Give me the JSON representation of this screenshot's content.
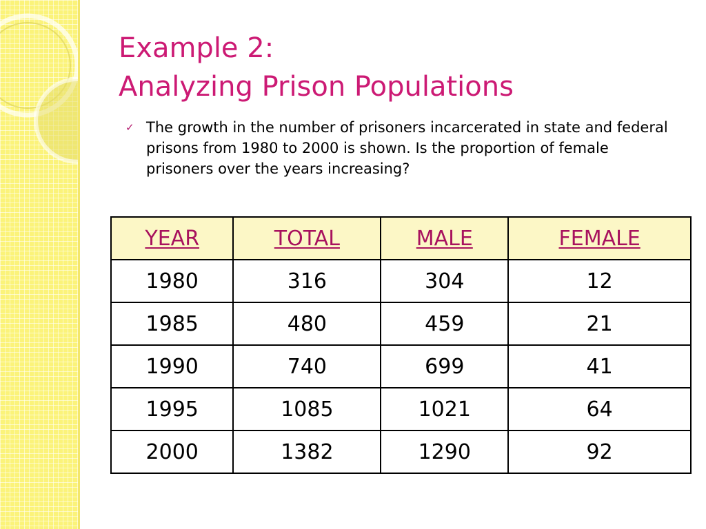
{
  "slide": {
    "title_line1": "Example 2:",
    "title_line2": "Analyzing Prison Populations",
    "bullet_icon": "checkmark",
    "bullet_text": "The growth in the number of prisoners incarcerated in state and federal prisons from 1980 to 2000 is shown.  Is the proportion of female prisoners over the years increasing?"
  },
  "table": {
    "headers": [
      "YEAR",
      "TOTAL",
      "MALE",
      "FEMALE"
    ],
    "rows": [
      [
        "1980",
        "316",
        "304",
        "12"
      ],
      [
        "1985",
        "480",
        "459",
        "21"
      ],
      [
        "1990",
        "740",
        "699",
        "41"
      ],
      [
        "1995",
        "1085",
        "1021",
        "64"
      ],
      [
        "2000",
        "1382",
        "1290",
        "92"
      ]
    ]
  },
  "colors": {
    "title": "#cc1a74",
    "header_text": "#a8125e",
    "header_bg": "#fcf7c6",
    "sidebar": "#fbf37a"
  }
}
